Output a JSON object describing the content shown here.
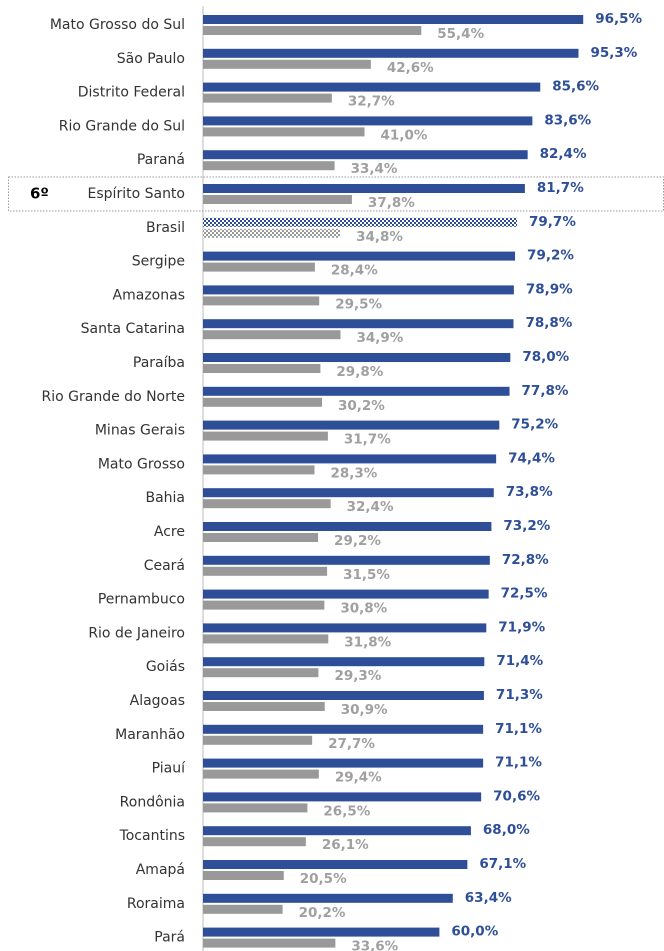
{
  "chart_data": {
    "type": "hbar",
    "categories": [
      "Mato Grosso do Sul",
      "São Paulo",
      "Distrito Federal",
      "Rio Grande do Sul",
      "Paraná",
      "Espírito Santo",
      "Brasil",
      "Sergipe",
      "Amazonas",
      "Santa Catarina",
      "Paraíba",
      "Rio Grande do Norte",
      "Minas Gerais",
      "Mato Grosso",
      "Bahia",
      "Acre",
      "Ceará",
      "Pernambuco",
      "Rio de Janeiro",
      "Goiás",
      "Alagoas",
      "Maranhão",
      "Piauí",
      "Rondônia",
      "Tocantins",
      "Amapá",
      "Roraima",
      "Pará"
    ],
    "series": [
      {
        "color": "#2e4f98",
        "values": [
          96.5,
          95.3,
          85.6,
          83.6,
          82.4,
          81.7,
          79.7,
          79.2,
          78.9,
          78.8,
          78.0,
          77.8,
          75.2,
          74.4,
          73.8,
          73.2,
          72.8,
          72.5,
          71.9,
          71.4,
          71.3,
          71.1,
          71.1,
          70.6,
          68.0,
          67.1,
          63.4,
          60.0
        ],
        "value_labels": [
          "96,5%",
          "95,3%",
          "85,6%",
          "83,6%",
          "82,4%",
          "81,7%",
          "79,7%",
          "79,2%",
          "78,9%",
          "78,8%",
          "78,0%",
          "77,8%",
          "75,2%",
          "74,4%",
          "73,8%",
          "73,2%",
          "72,8%",
          "72,5%",
          "71,9%",
          "71,4%",
          "71,3%",
          "71,1%",
          "71,1%",
          "70,6%",
          "68,0%",
          "67,1%",
          "63,4%",
          "60,0%"
        ]
      },
      {
        "color": "#999999",
        "values": [
          55.4,
          42.6,
          32.7,
          41.0,
          33.4,
          37.8,
          34.8,
          28.4,
          29.5,
          34.9,
          29.8,
          30.2,
          31.7,
          28.3,
          32.4,
          29.2,
          31.5,
          30.8,
          31.8,
          29.3,
          30.9,
          27.7,
          29.4,
          26.5,
          26.1,
          20.5,
          20.2,
          33.6
        ],
        "value_labels": [
          "55,4%",
          "42,6%",
          "32,7%",
          "41,0%",
          "33,4%",
          "37,8%",
          "34,8%",
          "28,4%",
          "29,5%",
          "34,9%",
          "29,8%",
          "30,2%",
          "31,7%",
          "28,3%",
          "32,4%",
          "29,2%",
          "31,5%",
          "30,8%",
          "31,8%",
          "29,3%",
          "30,9%",
          "27,7%",
          "29,4%",
          "26,5%",
          "26,1%",
          "20,5%",
          "20,2%",
          "33,6%"
        ]
      }
    ],
    "xlim": [
      0,
      100
    ],
    "hatched_category": "Brasil",
    "annotations": [
      {
        "text": "6º",
        "category": "Espírito Santo"
      }
    ]
  }
}
